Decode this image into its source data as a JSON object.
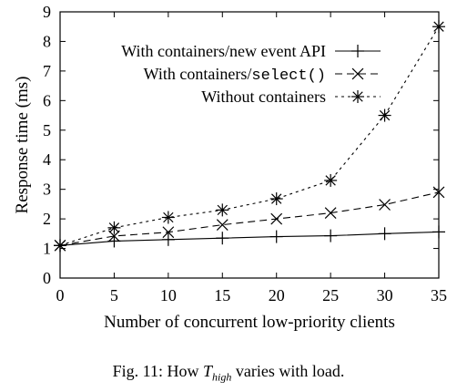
{
  "chart_data": {
    "type": "line",
    "title": "",
    "xlabel": "Number of concurrent low-priority clients",
    "ylabel": "Response time (ms)",
    "xlim": [
      0,
      35
    ],
    "ylim": [
      0,
      9
    ],
    "xticks": [
      "0",
      "5",
      "10",
      "15",
      "20",
      "25",
      "30",
      "35"
    ],
    "yticks": [
      "0",
      "1",
      "2",
      "3",
      "4",
      "5",
      "6",
      "7",
      "8",
      "9"
    ],
    "grid": false,
    "legend_position": "top-left",
    "x": [
      0,
      5,
      10,
      15,
      20,
      25,
      30,
      35
    ],
    "series": [
      {
        "name_prefix": "With containers/new event API",
        "name_mono": "",
        "marker": "plus",
        "line_style": "solid",
        "values": [
          1.1,
          1.25,
          1.3,
          1.35,
          1.4,
          1.43,
          1.5,
          1.56
        ]
      },
      {
        "name_prefix": "With containers/",
        "name_mono": "select()",
        "marker": "cross",
        "line_style": "dashed",
        "values": [
          1.1,
          1.42,
          1.55,
          1.8,
          2.0,
          2.2,
          2.48,
          2.9
        ]
      },
      {
        "name_prefix": "Without containers",
        "name_mono": "",
        "marker": "star",
        "line_style": "dotted",
        "values": [
          1.1,
          1.7,
          2.05,
          2.3,
          2.68,
          3.3,
          5.5,
          8.5
        ]
      }
    ]
  },
  "caption": {
    "prefix": "Fig. 11: How",
    "math_base": "T",
    "math_sub": "high",
    "suffix": "varies with load."
  }
}
